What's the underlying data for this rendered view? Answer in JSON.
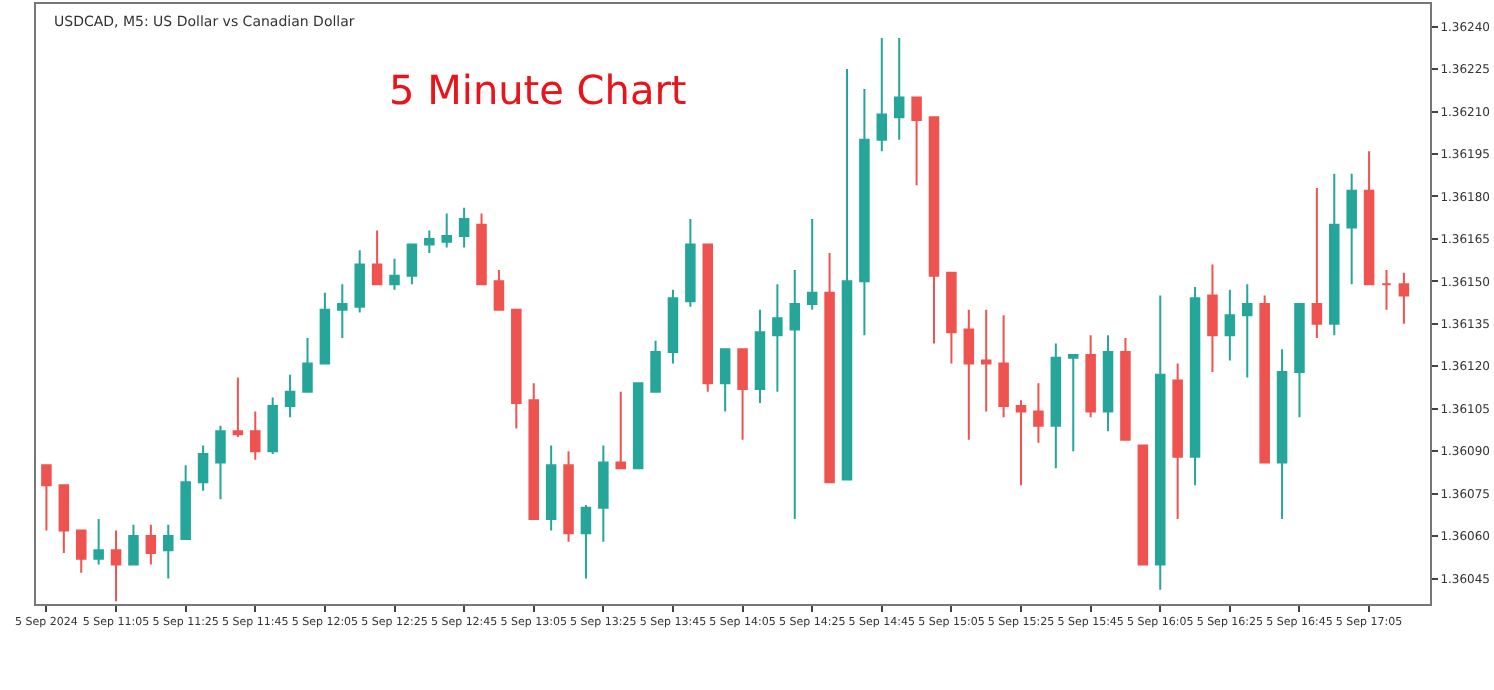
{
  "chart_data": {
    "type": "candlestick",
    "title": "5 Minute Chart",
    "subtitle": "USDCAD, M5: US Dollar vs Canadian Dollar",
    "categories": [
      "5 Sep 2024",
      null,
      null,
      null,
      "5 Sep 11:05",
      null,
      null,
      null,
      "5 Sep 11:25",
      null,
      null,
      null,
      "5 Sep 11:45",
      null,
      null,
      null,
      "5 Sep 12:05",
      null,
      null,
      null,
      "5 Sep 12:25",
      null,
      null,
      null,
      "5 Sep 12:45",
      null,
      null,
      null,
      "5 Sep 13:05",
      null,
      null,
      null,
      "5 Sep 13:25",
      null,
      null,
      null,
      "5 Sep 13:45",
      null,
      null,
      null,
      "5 Sep 14:05",
      null,
      null,
      null,
      "5 Sep 14:25",
      null,
      null,
      null,
      "5 Sep 14:45",
      null,
      null,
      null,
      "5 Sep 15:05",
      null,
      null,
      null,
      "5 Sep 15:25",
      null,
      null,
      null,
      "5 Sep 15:45",
      null,
      null,
      null,
      "5 Sep 16:05",
      null,
      null,
      null,
      "5 Sep 16:25",
      null,
      null,
      null,
      "5 Sep 16:45",
      null,
      null,
      null,
      "5 Sep 17:05",
      null,
      null
    ],
    "ohlc": [
      [
        1.36085,
        1.36085,
        1.36062,
        1.36078
      ],
      [
        1.36078,
        1.36078,
        1.36054,
        1.36062
      ],
      [
        1.36062,
        1.36062,
        1.36047,
        1.36052
      ],
      [
        1.36052,
        1.36066,
        1.3605,
        1.36055
      ],
      [
        1.36055,
        1.36062,
        1.36037,
        1.3605
      ],
      [
        1.3605,
        1.36064,
        1.3605,
        1.3606
      ],
      [
        1.3606,
        1.36064,
        1.3605,
        1.36054
      ],
      [
        1.36055,
        1.36064,
        1.36045,
        1.3606
      ],
      [
        1.36059,
        1.36085,
        1.36059,
        1.36079
      ],
      [
        1.36079,
        1.36092,
        1.36076,
        1.36089
      ],
      [
        1.36086,
        1.36099,
        1.36073,
        1.36097
      ],
      [
        1.36097,
        1.36116,
        1.36095,
        1.36096
      ],
      [
        1.36097,
        1.36104,
        1.36087,
        1.3609
      ],
      [
        1.3609,
        1.36109,
        1.36089,
        1.36106
      ],
      [
        1.36106,
        1.36117,
        1.36102,
        1.36111
      ],
      [
        1.36111,
        1.3613,
        1.36111,
        1.36121
      ],
      [
        1.36121,
        1.36146,
        1.36121,
        1.3614
      ],
      [
        1.3614,
        1.36149,
        1.3613,
        1.36142
      ],
      [
        1.36141,
        1.36161,
        1.36139,
        1.36156
      ],
      [
        1.36156,
        1.36168,
        1.36149,
        1.36149
      ],
      [
        1.36149,
        1.36158,
        1.36147,
        1.36152
      ],
      [
        1.36152,
        1.36163,
        1.36149,
        1.36163
      ],
      [
        1.36163,
        1.36168,
        1.3616,
        1.36165
      ],
      [
        1.36164,
        1.36174,
        1.36162,
        1.36166
      ],
      [
        1.36166,
        1.36176,
        1.36162,
        1.36172
      ],
      [
        1.3617,
        1.36174,
        1.36149,
        1.36149
      ],
      [
        1.3615,
        1.36154,
        1.3614,
        1.3614
      ],
      [
        1.3614,
        1.3614,
        1.36098,
        1.36107
      ],
      [
        1.36108,
        1.36114,
        1.36066,
        1.36066
      ],
      [
        1.36066,
        1.36092,
        1.36062,
        1.36085
      ],
      [
        1.36085,
        1.3609,
        1.36058,
        1.36061
      ],
      [
        1.36061,
        1.36071,
        1.36045,
        1.3607
      ],
      [
        1.3607,
        1.36092,
        1.36058,
        1.36086
      ],
      [
        1.36086,
        1.36111,
        1.36084,
        1.36084
      ],
      [
        1.36084,
        1.36114,
        1.36084,
        1.36114
      ],
      [
        1.36111,
        1.36129,
        1.36111,
        1.36125
      ],
      [
        1.36125,
        1.36147,
        1.36121,
        1.36144
      ],
      [
        1.36143,
        1.36172,
        1.36141,
        1.36163
      ],
      [
        1.36163,
        1.36163,
        1.36111,
        1.36114
      ],
      [
        1.36114,
        1.36126,
        1.36104,
        1.36126
      ],
      [
        1.36126,
        1.36126,
        1.36094,
        1.36112
      ],
      [
        1.36112,
        1.3614,
        1.36107,
        1.36132
      ],
      [
        1.36131,
        1.36149,
        1.36111,
        1.36137
      ],
      [
        1.36133,
        1.36154,
        1.36066,
        1.36142
      ],
      [
        1.36142,
        1.36172,
        1.3614,
        1.36146
      ],
      [
        1.36146,
        1.3616,
        1.36079,
        1.36079
      ],
      [
        1.3608,
        1.36225,
        1.3608,
        1.3615
      ],
      [
        1.3615,
        1.36218,
        1.36131,
        1.362
      ],
      [
        1.362,
        1.36236,
        1.36196,
        1.36209
      ],
      [
        1.36208,
        1.36236,
        1.362,
        1.36215
      ],
      [
        1.36215,
        1.36215,
        1.36184,
        1.36207
      ],
      [
        1.36208,
        1.36208,
        1.36128,
        1.36152
      ],
      [
        1.36153,
        1.36153,
        1.36121,
        1.36132
      ],
      [
        1.36133,
        1.3614,
        1.36094,
        1.36121
      ],
      [
        1.36122,
        1.3614,
        1.36104,
        1.36121
      ],
      [
        1.36121,
        1.36138,
        1.36102,
        1.36106
      ],
      [
        1.36106,
        1.36108,
        1.36078,
        1.36104
      ],
      [
        1.36104,
        1.36114,
        1.36093,
        1.36099
      ],
      [
        1.36099,
        1.36128,
        1.36084,
        1.36123
      ],
      [
        1.36123,
        1.36124,
        1.3609,
        1.36124
      ],
      [
        1.36124,
        1.36131,
        1.36102,
        1.36104
      ],
      [
        1.36104,
        1.36131,
        1.36097,
        1.36125
      ],
      [
        1.36125,
        1.3613,
        1.36094,
        1.36094
      ],
      [
        1.36092,
        1.36092,
        1.3605,
        1.3605
      ],
      [
        1.3605,
        1.36145,
        1.36041,
        1.36117
      ],
      [
        1.36115,
        1.36121,
        1.36066,
        1.36088
      ],
      [
        1.36088,
        1.36148,
        1.36078,
        1.36144
      ],
      [
        1.36145,
        1.36156,
        1.36118,
        1.36131
      ],
      [
        1.36131,
        1.36147,
        1.36122,
        1.36138
      ],
      [
        1.36138,
        1.36149,
        1.36116,
        1.36142
      ],
      [
        1.36142,
        1.36145,
        1.36086,
        1.36086
      ],
      [
        1.36086,
        1.36126,
        1.36066,
        1.36118
      ],
      [
        1.36118,
        1.36142,
        1.36102,
        1.36142
      ],
      [
        1.36142,
        1.36183,
        1.3613,
        1.36135
      ],
      [
        1.36135,
        1.36188,
        1.36131,
        1.3617
      ],
      [
        1.36169,
        1.36188,
        1.36149,
        1.36182
      ],
      [
        1.36182,
        1.36196,
        1.36149,
        1.36149
      ],
      [
        1.36149,
        1.36154,
        1.3614,
        1.36149
      ],
      [
        1.36149,
        1.36153,
        1.36135,
        1.36145
      ]
    ],
    "ylim": [
      1.36036,
      1.36248
    ],
    "yticks": [
      {
        "value": 1.3624,
        "label": "1.36240"
      },
      1.36225,
      {
        "value": 1.3621,
        "label": "1.36210"
      },
      1.36195,
      {
        "value": 1.3618,
        "label": "1.36180"
      },
      1.36165,
      {
        "value": 1.3615,
        "label": "1.36150"
      },
      1.36135,
      {
        "value": 1.3612,
        "label": "1.36120"
      },
      1.36105,
      {
        "value": 1.3609,
        "label": "1.36090"
      },
      1.36075,
      {
        "value": 1.3606,
        "label": "1.36060"
      },
      1.36045
    ]
  }
}
